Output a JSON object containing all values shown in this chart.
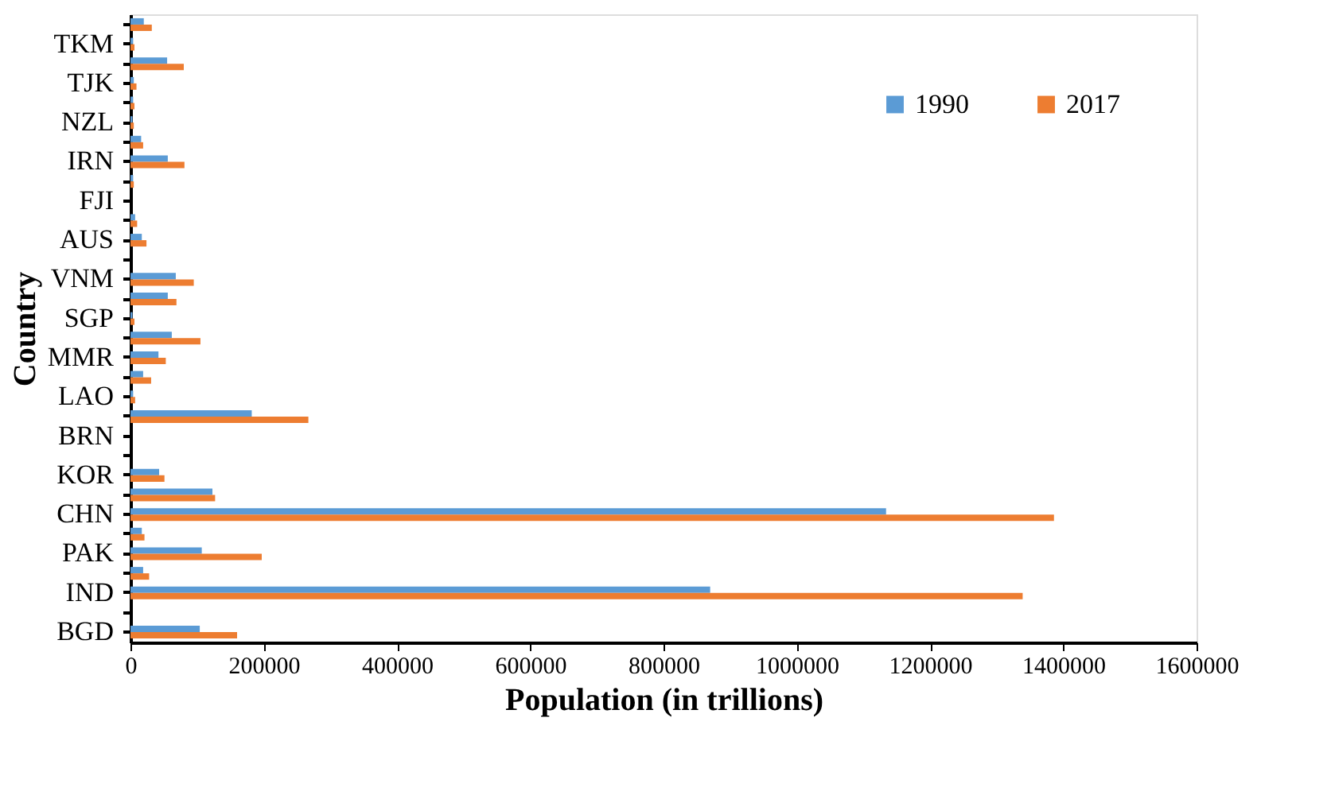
{
  "chart_data": {
    "type": "bar",
    "orientation": "horizontal",
    "xlabel": "Population (in trillions)",
    "ylabel": "Country",
    "categories": [
      null,
      "TKM",
      null,
      "TJK",
      null,
      "NZL",
      null,
      "IRN",
      null,
      "FJI",
      null,
      "AUS",
      null,
      "VNM",
      null,
      "SGP",
      null,
      "MMR",
      null,
      "LAO",
      null,
      "BRN",
      null,
      "KOR",
      null,
      "CHN",
      null,
      "PAK",
      null,
      "IND",
      null,
      "BGD"
    ],
    "series": [
      {
        "name": "1990",
        "color": "#5b9bd5",
        "values": [
          20000,
          4000,
          55000,
          5000,
          4000,
          3000,
          16000,
          56000,
          4000,
          0,
          7000,
          17000,
          0,
          68000,
          56000,
          3000,
          62000,
          42000,
          19000,
          4000,
          182000,
          0,
          0,
          43000,
          123000,
          1134000,
          17000,
          107000,
          19000,
          870000,
          0,
          104000
        ]
      },
      {
        "name": "2017",
        "color": "#ed7d31",
        "values": [
          32000,
          6000,
          80000,
          9000,
          6000,
          5000,
          19000,
          81000,
          5000,
          0,
          10000,
          24000,
          0,
          95000,
          69000,
          6000,
          105000,
          53000,
          31000,
          7000,
          267000,
          0,
          0,
          51000,
          127000,
          1386000,
          21000,
          197000,
          28000,
          1339000,
          0,
          160000
        ]
      }
    ],
    "xlim": [
      0,
      1600000
    ],
    "xticks": [
      0,
      200000,
      400000,
      600000,
      800000,
      1000000,
      1200000,
      1400000,
      1600000
    ],
    "legend": "top right",
    "grid": false
  }
}
